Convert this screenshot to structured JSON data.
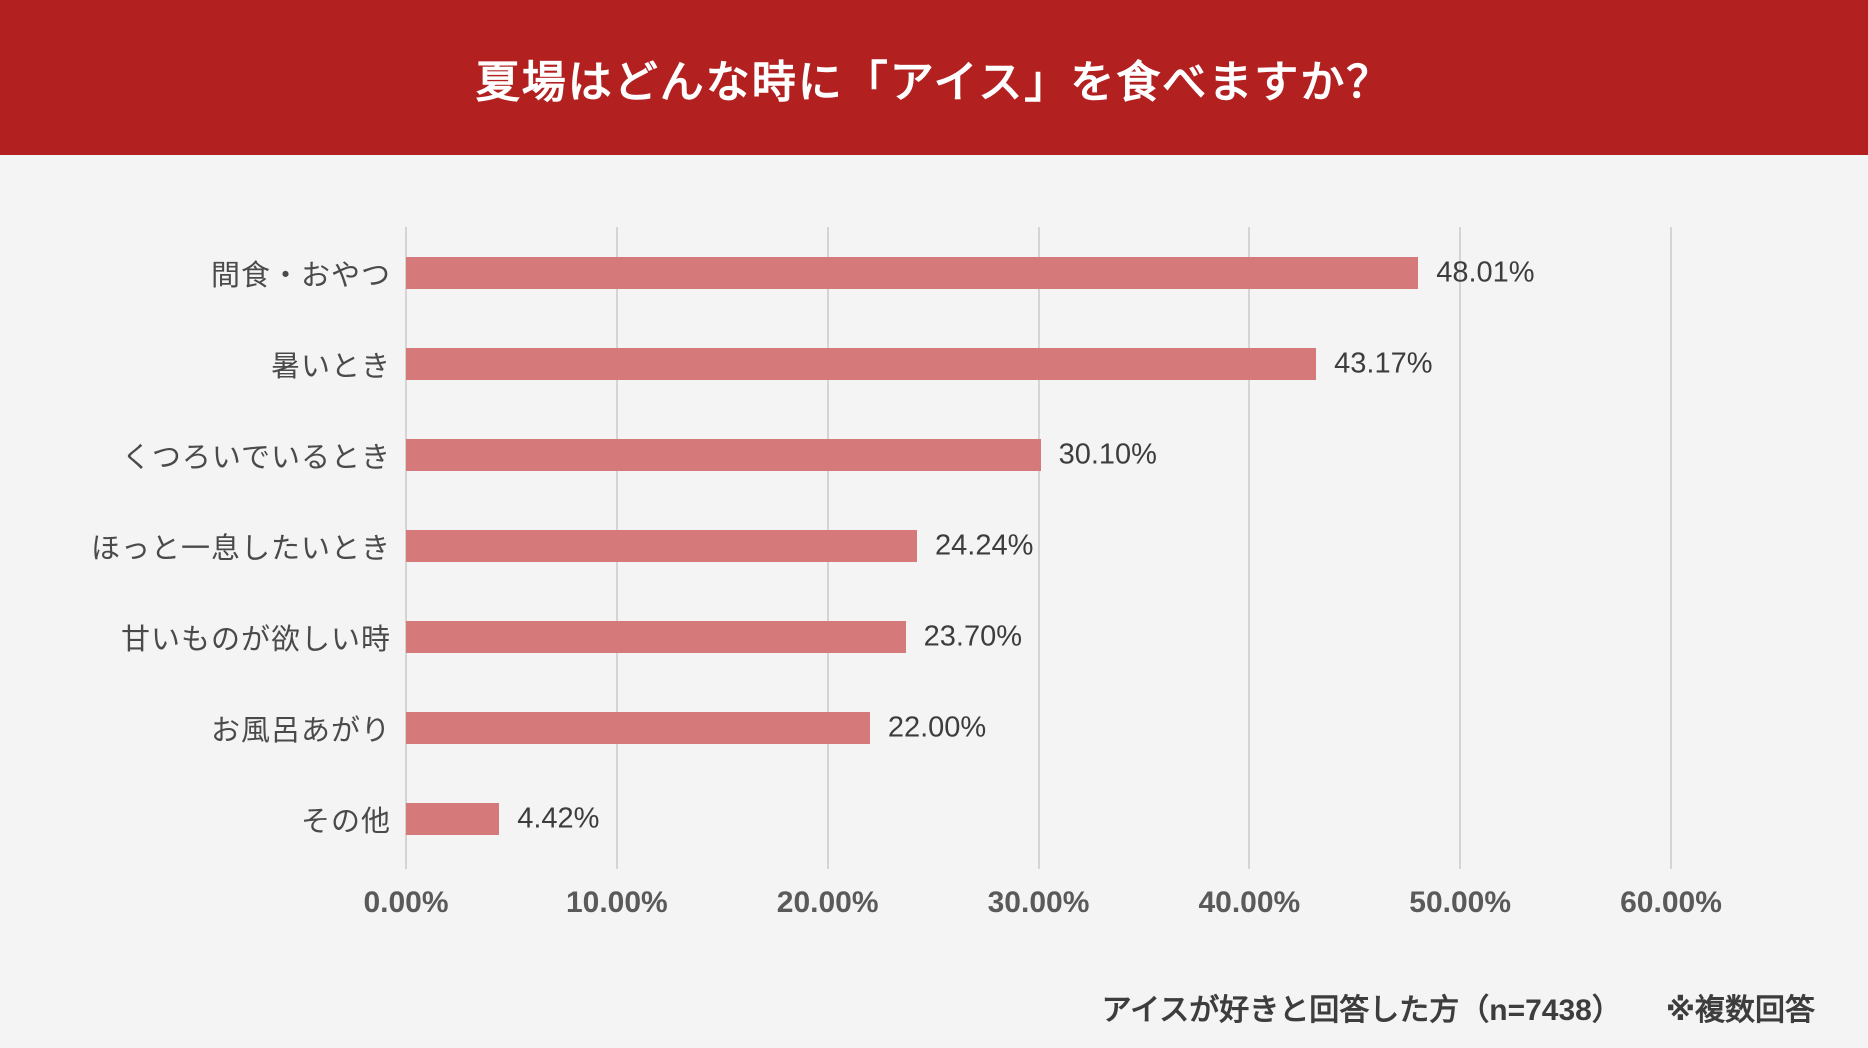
{
  "header": {
    "title": "夏場はどんな時に「アイス」を食べますか？",
    "background_color": "#b22020",
    "text_color": "#ffffff"
  },
  "chart_data": {
    "type": "bar",
    "orientation": "horizontal",
    "title": "夏場はどんな時に「アイス」を食べますか？",
    "categories": [
      "間食・おやつ",
      "暑いとき",
      "くつろいでいるとき",
      "ほっと一息したいとき",
      "甘いものが欲しい時",
      "お風呂あがり",
      "その他"
    ],
    "values": [
      48.01,
      43.17,
      30.1,
      24.24,
      23.7,
      22.0,
      4.42
    ],
    "value_labels": [
      "48.01%",
      "43.17%",
      "30.10%",
      "24.24%",
      "23.70%",
      "22.00%",
      "4.42%"
    ],
    "x_ticks": [
      "0.00%",
      "10.00%",
      "20.00%",
      "30.00%",
      "40.00%",
      "50.00%",
      "60.00%"
    ],
    "xlim": [
      0,
      60
    ],
    "grid": true,
    "legend": false,
    "bar_color": "#d6797a",
    "gridline_color": "#d6d4d3",
    "background_color": "#f5f4f4"
  },
  "footer": {
    "note_sample": "アイスが好きと回答した方（n=7438）",
    "note_multi": "※複数回答"
  }
}
